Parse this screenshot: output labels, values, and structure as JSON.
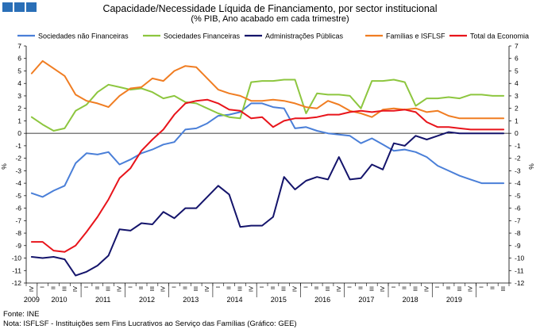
{
  "header": {
    "title": "Capacidade/Necessidade Líquida de Financiamento, por sector institucional",
    "subtitle": "(% PIB, Ano acabado em cada trimestre)"
  },
  "footer": {
    "source": "Fonte: INE",
    "note": "Nota: ISFLSF - Instituições sem Fins Lucrativos ao Serviço das Famílias (Gráfico: GEE)"
  },
  "chart_data": {
    "type": "line",
    "ylabel_left": "%",
    "ylabel_right": "%",
    "ylim": [
      -12,
      7
    ],
    "yticks": [
      7,
      6,
      5,
      4,
      3,
      2,
      1,
      0,
      -1,
      -2,
      -3,
      -4,
      -5,
      -6,
      -7,
      -8,
      -9,
      -10,
      -11,
      -12
    ],
    "grid": false,
    "legend_position": "top",
    "quarter_labels": [
      "IV",
      "I",
      "II",
      "III",
      "IV",
      "I",
      "II",
      "III",
      "IV",
      "I",
      "II",
      "III",
      "IV",
      "I",
      "II",
      "III",
      "IV",
      "I",
      "II",
      "III",
      "IV",
      "I",
      "II",
      "III",
      "IV",
      "I",
      "II",
      "III",
      "IV",
      "I",
      "II",
      "III",
      "IV",
      "I",
      "II",
      "III",
      "IV",
      "I",
      "II",
      "III",
      "IV",
      "I",
      "II",
      "III"
    ],
    "years": [
      {
        "label": "2009",
        "index": 0
      },
      {
        "label": "2010",
        "index": 2.5
      },
      {
        "label": "2011",
        "index": 6.5
      },
      {
        "label": "2012",
        "index": 10.5
      },
      {
        "label": "2013",
        "index": 14.5
      },
      {
        "label": "2014",
        "index": 18.5
      },
      {
        "label": "2015",
        "index": 22.5
      },
      {
        "label": "2016",
        "index": 26.5
      },
      {
        "label": "2017",
        "index": 30.5
      },
      {
        "label": "2018",
        "index": 34.5
      },
      {
        "label": "2019",
        "index": 38.5
      }
    ],
    "series": [
      {
        "name": "Sociedades não Financeiras",
        "color": "#4a7fd8",
        "values": [
          -4.8,
          -5.1,
          -4.6,
          -4.2,
          -2.4,
          -1.6,
          -1.7,
          -1.5,
          -2.5,
          -2.1,
          -1.6,
          -1.3,
          -0.9,
          -0.7,
          0.3,
          0.4,
          0.8,
          1.4,
          1.5,
          1.7,
          2.4,
          2.4,
          2.1,
          2.0,
          0.4,
          0.5,
          0.2,
          0.0,
          -0.1,
          -0.2,
          -0.8,
          -0.4,
          -0.9,
          -1.4,
          -1.3,
          -1.5,
          -1.9,
          -2.6,
          -3.0,
          -3.4,
          -3.7,
          -4.0,
          -4.0,
          -4.0
        ]
      },
      {
        "name": "Sociedades Financeiras",
        "color": "#8dc63f",
        "values": [
          1.3,
          0.7,
          0.2,
          0.4,
          1.8,
          2.3,
          3.3,
          3.9,
          3.7,
          3.5,
          3.6,
          3.3,
          2.8,
          3.0,
          2.5,
          2.4,
          2.0,
          1.6,
          1.3,
          1.2,
          4.1,
          4.2,
          4.2,
          4.3,
          4.3,
          1.6,
          3.2,
          3.1,
          3.1,
          3.0,
          2.0,
          4.2,
          4.2,
          4.3,
          4.1,
          2.2,
          2.8,
          2.8,
          2.9,
          2.8,
          3.1,
          3.1,
          3.0,
          3.0
        ]
      },
      {
        "name": "Administrações Públicas",
        "color": "#14146b",
        "values": [
          -9.9,
          -10.0,
          -9.9,
          -10.1,
          -11.4,
          -11.1,
          -10.6,
          -9.8,
          -7.7,
          -7.8,
          -7.2,
          -7.3,
          -6.3,
          -6.8,
          -6.0,
          -6.0,
          -5.1,
          -4.2,
          -4.9,
          -7.5,
          -7.4,
          -7.4,
          -6.7,
          -3.5,
          -4.5,
          -3.8,
          -3.5,
          -3.7,
          -1.9,
          -3.7,
          -3.6,
          -2.5,
          -2.9,
          -0.8,
          -1.0,
          -0.2,
          -0.5,
          -0.2,
          0.1,
          0.0,
          0.0,
          0.0,
          0.0,
          0.0
        ]
      },
      {
        "name": "Famílias e ISFLSF",
        "color": "#f07d22",
        "values": [
          4.8,
          5.8,
          5.2,
          4.6,
          3.1,
          2.6,
          2.4,
          2.1,
          3.0,
          3.6,
          3.7,
          4.4,
          4.2,
          5.0,
          5.4,
          5.3,
          4.4,
          3.5,
          3.2,
          3.0,
          2.6,
          2.6,
          2.7,
          2.6,
          2.4,
          2.1,
          2.0,
          2.6,
          2.3,
          1.8,
          1.6,
          1.3,
          1.9,
          2.0,
          1.9,
          2.0,
          1.7,
          1.8,
          1.4,
          1.2,
          1.2,
          1.2,
          1.2,
          1.2
        ]
      },
      {
        "name": "Total da Economia",
        "color": "#e8141b",
        "values": [
          -8.7,
          -8.7,
          -9.4,
          -9.5,
          -9.0,
          -7.9,
          -6.7,
          -5.3,
          -3.6,
          -2.8,
          -1.4,
          -0.5,
          0.3,
          1.5,
          2.4,
          2.6,
          2.7,
          2.4,
          1.9,
          1.8,
          1.2,
          1.3,
          0.5,
          1.0,
          1.2,
          1.2,
          1.3,
          1.5,
          1.5,
          1.7,
          1.8,
          1.7,
          1.8,
          1.8,
          1.9,
          1.7,
          0.9,
          0.5,
          0.5,
          0.4,
          0.3,
          0.3,
          0.3,
          0.3
        ]
      }
    ]
  }
}
